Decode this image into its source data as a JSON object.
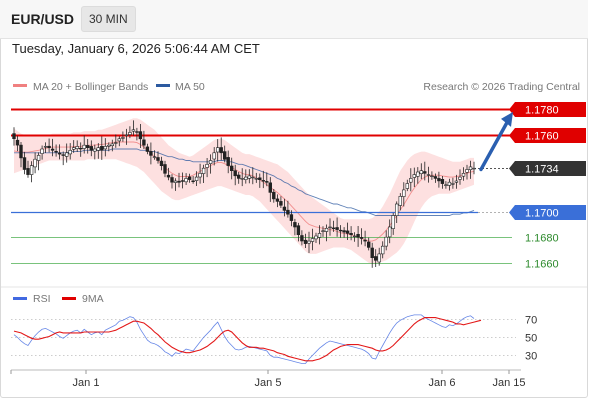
{
  "header": {
    "symbol": "EUR/USD",
    "interval": "30 MIN",
    "datetime": "Tuesday, January 6, 2026 5:06:44 AM CET"
  },
  "legend": {
    "ma20_label": "MA 20 + Bollinger Bands",
    "ma50_label": "MA 50",
    "credit": "Research © 2026 Trading Central",
    "colors": {
      "ma20": "#f08080",
      "ma50": "#2c5aa0"
    }
  },
  "rsi_legend": {
    "rsi_label": "RSI",
    "ma_label": "9MA",
    "colors": {
      "rsi": "#4169e1",
      "ma": "#e00000"
    }
  },
  "colors": {
    "resistance": "#e00000",
    "support": "#3a6fd8",
    "secondary_support": "#4caf50",
    "bollinger_fill": "#fde0e0",
    "arrow": "#2a5fb0",
    "current_price_bg": "#333333"
  },
  "chart_data": [
    {
      "type": "candlestick",
      "ylim": [
        1.1645,
        1.1792
      ],
      "levels": [
        {
          "price": 1.178,
          "label": "1.1780",
          "kind": "resistance",
          "style": "box"
        },
        {
          "price": 1.176,
          "label": "1.1760",
          "kind": "resistance",
          "style": "box"
        },
        {
          "price": 1.1734,
          "label": "1.1734",
          "kind": "current",
          "style": "box"
        },
        {
          "price": 1.17,
          "label": "1.1700",
          "kind": "pivot",
          "style": "box"
        },
        {
          "price": 1.168,
          "label": "1.1680",
          "kind": "support",
          "style": "text"
        },
        {
          "price": 1.166,
          "label": "1.1660",
          "kind": "support",
          "style": "text"
        }
      ],
      "x_ticks": [
        "Jan 1",
        "Jan 5",
        "Jan 6",
        "Jan 15"
      ],
      "forecast_arrow": {
        "from_price": 1.1733,
        "to_price": 1.1778
      },
      "close": [
        1.1757,
        1.1752,
        1.1742,
        1.1733,
        1.1729,
        1.1736,
        1.1741,
        1.1744,
        1.1749,
        1.1751,
        1.175,
        1.1748,
        1.1747,
        1.1745,
        1.1744,
        1.1746,
        1.1748,
        1.175,
        1.1751,
        1.1749,
        1.1752,
        1.175,
        1.1748,
        1.1749,
        1.175,
        1.1748,
        1.1751,
        1.1752,
        1.1753,
        1.1754,
        1.1757,
        1.1758,
        1.176,
        1.1762,
        1.1764,
        1.1762,
        1.1757,
        1.1752,
        1.1747,
        1.1744,
        1.1743,
        1.174,
        1.1736,
        1.173,
        1.1727,
        1.1723,
        1.1724,
        1.1723,
        1.1724,
        1.1726,
        1.1725,
        1.1724,
        1.1727,
        1.173,
        1.1734,
        1.1737,
        1.174,
        1.1746,
        1.175,
        1.1746,
        1.1741,
        1.1736,
        1.1732,
        1.1728,
        1.1726,
        1.1726,
        1.1727,
        1.1728,
        1.1727,
        1.1726,
        1.1725,
        1.1724,
        1.1723,
        1.1715,
        1.171,
        1.1708,
        1.1705,
        1.1701,
        1.1698,
        1.1693,
        1.1688,
        1.1682,
        1.1677,
        1.1675,
        1.1677,
        1.1679,
        1.1681,
        1.1683,
        1.1685,
        1.1687,
        1.1688,
        1.1687,
        1.1686,
        1.1685,
        1.1684,
        1.1683,
        1.1682,
        1.1681,
        1.168,
        1.1679,
        1.1677,
        1.1672,
        1.1664,
        1.1662,
        1.1667,
        1.1673,
        1.168,
        1.1688,
        1.1697,
        1.1706,
        1.1712,
        1.1717,
        1.1722,
        1.1726,
        1.1729,
        1.1731,
        1.1732,
        1.173,
        1.1729,
        1.1728,
        1.1726,
        1.1724,
        1.1722,
        1.1721,
        1.1723,
        1.1722,
        1.1724,
        1.1727,
        1.173,
        1.1733,
        1.1735,
        1.1734
      ],
      "bollinger": {
        "upper": [
          1.1765,
          1.1763,
          1.1761,
          1.176,
          1.1759,
          1.1759,
          1.1759,
          1.1759,
          1.1759,
          1.176,
          1.176,
          1.1761,
          1.1761,
          1.1761,
          1.1761,
          1.1761,
          1.1761,
          1.1762,
          1.1762,
          1.1762,
          1.1763,
          1.1763,
          1.1763,
          1.1763,
          1.1764,
          1.1764,
          1.1765,
          1.1766,
          1.1767,
          1.1768,
          1.1769,
          1.177,
          1.1771,
          1.1772,
          1.1773,
          1.1773,
          1.1772,
          1.177,
          1.1768,
          1.1766,
          1.1764,
          1.1761,
          1.1758,
          1.1755,
          1.1752,
          1.175,
          1.1748,
          1.1746,
          1.1745,
          1.1744,
          1.1743,
          1.1744,
          1.1746,
          1.1748,
          1.175,
          1.1752,
          1.1754,
          1.1756,
          1.1757,
          1.1757,
          1.1756,
          1.1754,
          1.1752,
          1.175,
          1.1748,
          1.1746,
          1.1745,
          1.1745,
          1.1744,
          1.1743,
          1.1742,
          1.1741,
          1.174,
          1.1739,
          1.1738,
          1.1737,
          1.1735,
          1.1733,
          1.1731,
          1.1728,
          1.1725,
          1.1722,
          1.1719,
          1.1716,
          1.1713,
          1.1711,
          1.1709,
          1.1707,
          1.1705,
          1.1703,
          1.1701,
          1.1699,
          1.1697,
          1.1695,
          1.1694,
          1.1694,
          1.1694,
          1.1694,
          1.1694,
          1.1694,
          1.1694,
          1.1694,
          1.1695,
          1.1697,
          1.17,
          1.1704,
          1.1709,
          1.1714,
          1.172,
          1.1726,
          1.1732,
          1.1736,
          1.174,
          1.1743,
          1.1745,
          1.1746,
          1.1747,
          1.1747,
          1.1746,
          1.1745,
          1.1744,
          1.1743,
          1.1742,
          1.1741,
          1.174,
          1.1739,
          1.1739,
          1.1739,
          1.174,
          1.1741,
          1.1742,
          1.1742
        ],
        "lower": [
          1.173,
          1.1731,
          1.1732,
          1.1733,
          1.1734,
          1.1735,
          1.1736,
          1.1737,
          1.1738,
          1.1739,
          1.174,
          1.174,
          1.174,
          1.174,
          1.174,
          1.174,
          1.174,
          1.174,
          1.174,
          1.174,
          1.174,
          1.1741,
          1.1741,
          1.1741,
          1.1741,
          1.1741,
          1.1741,
          1.1741,
          1.1741,
          1.1741,
          1.174,
          1.1739,
          1.1738,
          1.1737,
          1.1736,
          1.1735,
          1.1733,
          1.1731,
          1.1728,
          1.1725,
          1.1722,
          1.1719,
          1.1716,
          1.1714,
          1.1712,
          1.171,
          1.1709,
          1.1709,
          1.171,
          1.1711,
          1.1712,
          1.1713,
          1.1714,
          1.1715,
          1.1716,
          1.1717,
          1.1718,
          1.1719,
          1.172,
          1.172,
          1.1719,
          1.1718,
          1.1717,
          1.1716,
          1.1715,
          1.1714,
          1.1713,
          1.1713,
          1.1712,
          1.171,
          1.1708,
          1.1705,
          1.1702,
          1.1699,
          1.1696,
          1.1693,
          1.169,
          1.1687,
          1.1684,
          1.1681,
          1.1678,
          1.1675,
          1.1672,
          1.1669,
          1.1667,
          1.1667,
          1.1667,
          1.1668,
          1.1669,
          1.167,
          1.1671,
          1.1672,
          1.1672,
          1.1672,
          1.1672,
          1.1671,
          1.167,
          1.1668,
          1.1666,
          1.1664,
          1.1662,
          1.166,
          1.1659,
          1.1659,
          1.166,
          1.1661,
          1.1662,
          1.1664,
          1.1666,
          1.1668,
          1.1671,
          1.1675,
          1.168,
          1.1686,
          1.1692,
          1.1698,
          1.1703,
          1.1707,
          1.171,
          1.1712,
          1.1713,
          1.1714,
          1.1714,
          1.1714,
          1.1714,
          1.1715,
          1.1716,
          1.1717,
          1.1718,
          1.1719,
          1.172,
          1.1721
        ]
      },
      "ma50": [
        1.1746,
        1.1746,
        1.1746,
        1.1746,
        1.1746,
        1.1746,
        1.1746,
        1.1746,
        1.1746,
        1.1746,
        1.1746,
        1.1746,
        1.1746,
        1.1746,
        1.1746,
        1.1746,
        1.1747,
        1.1747,
        1.1747,
        1.1747,
        1.1748,
        1.1748,
        1.1748,
        1.1748,
        1.1748,
        1.1748,
        1.1748,
        1.1748,
        1.1749,
        1.1749,
        1.1749,
        1.1749,
        1.1749,
        1.1749,
        1.1749,
        1.1749,
        1.1748,
        1.1748,
        1.1748,
        1.1747,
        1.1747,
        1.1746,
        1.1745,
        1.1744,
        1.1743,
        1.1743,
        1.1742,
        1.1741,
        1.1741,
        1.174,
        1.174,
        1.1739,
        1.1739,
        1.1739,
        1.1739,
        1.1739,
        1.1739,
        1.1739,
        1.174,
        1.174,
        1.174,
        1.1739,
        1.1739,
        1.1738,
        1.1737,
        1.1737,
        1.1736,
        1.1735,
        1.1734,
        1.1733,
        1.1732,
        1.1731,
        1.173,
        1.1729,
        1.1728,
        1.1726,
        1.1725,
        1.1723,
        1.1722,
        1.172,
        1.1719,
        1.1717,
        1.1716,
        1.1714,
        1.1713,
        1.1712,
        1.1711,
        1.171,
        1.1709,
        1.1708,
        1.1707,
        1.1706,
        1.1706,
        1.1705,
        1.1704,
        1.1703,
        1.1703,
        1.1702,
        1.1701,
        1.17,
        1.17,
        1.1699,
        1.1698,
        1.1697,
        1.1697,
        1.1697,
        1.1697,
        1.1697,
        1.1697,
        1.1697,
        1.1697,
        1.1697,
        1.1697,
        1.1697,
        1.1697,
        1.1697,
        1.1697,
        1.1697,
        1.1697,
        1.1697,
        1.1697,
        1.1697,
        1.1697,
        1.1697,
        1.1697,
        1.1698,
        1.1698,
        1.1698,
        1.1699,
        1.1699,
        1.17,
        1.1701
      ]
    },
    {
      "type": "line",
      "ylim": [
        15,
        85
      ],
      "y_ticks": [
        70,
        50,
        30
      ],
      "series": [
        {
          "name": "RSI",
          "values": [
            52,
            49,
            45,
            42,
            40,
            46,
            51,
            55,
            58,
            59,
            57,
            55,
            53,
            50,
            48,
            51,
            54,
            56,
            57,
            54,
            58,
            55,
            52,
            54,
            55,
            52,
            57,
            59,
            61,
            63,
            67,
            68,
            70,
            72,
            71,
            66,
            58,
            52,
            46,
            43,
            42,
            40,
            37,
            33,
            31,
            28,
            32,
            31,
            33,
            36,
            35,
            34,
            39,
            44,
            49,
            53,
            57,
            62,
            66,
            58,
            50,
            44,
            40,
            36,
            35,
            36,
            38,
            39,
            38,
            37,
            36,
            35,
            34,
            29,
            27,
            27,
            26,
            25,
            24,
            23,
            22,
            21,
            20,
            20,
            25,
            29,
            33,
            37,
            40,
            43,
            45,
            44,
            43,
            42,
            41,
            40,
            39,
            38,
            37,
            36,
            34,
            31,
            26,
            25,
            33,
            40,
            47,
            54,
            60,
            65,
            68,
            70,
            72,
            73,
            74,
            74,
            74,
            71,
            69,
            67,
            65,
            63,
            61,
            60,
            63,
            62,
            64,
            67,
            70,
            72,
            73,
            70
          ]
        },
        {
          "name": "9MA",
          "values": [
            56,
            55,
            54,
            52,
            50,
            48,
            47,
            47,
            48,
            49,
            50,
            52,
            54,
            55,
            54,
            54,
            54,
            54,
            54,
            54,
            55,
            55,
            55,
            55,
            55,
            55,
            55,
            55,
            56,
            57,
            59,
            61,
            63,
            65,
            67,
            67,
            66,
            65,
            62,
            59,
            55,
            52,
            48,
            44,
            41,
            38,
            36,
            34,
            33,
            32,
            32,
            33,
            34,
            35,
            37,
            39,
            42,
            45,
            49,
            53,
            56,
            57,
            55,
            51,
            47,
            43,
            40,
            38,
            38,
            38,
            37,
            37,
            36,
            35,
            34,
            32,
            31,
            30,
            28,
            27,
            26,
            25,
            24,
            23,
            23,
            23,
            24,
            25,
            27,
            29,
            32,
            35,
            37,
            39,
            40,
            41,
            41,
            41,
            41,
            40,
            39,
            38,
            37,
            35,
            34,
            34,
            35,
            37,
            40,
            44,
            48,
            52,
            56,
            60,
            64,
            67,
            69,
            71,
            71,
            71,
            71,
            70,
            69,
            68,
            67,
            66,
            64,
            64,
            63,
            64,
            65,
            66,
            67,
            68
          ]
        }
      ]
    }
  ]
}
